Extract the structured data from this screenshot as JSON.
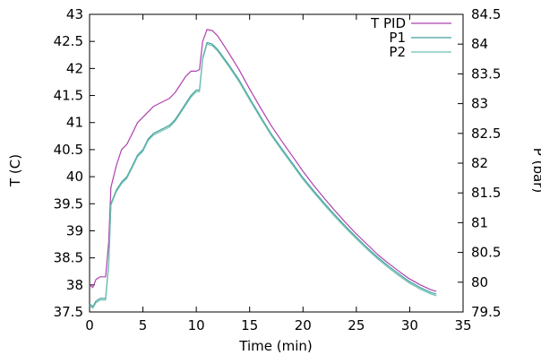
{
  "chart_data": {
    "type": "line",
    "xlabel": "Time (min)",
    "ylabel_left": "T (C)",
    "ylabel_right": "P (bar)",
    "xlim": [
      0,
      35
    ],
    "ylim_left": [
      37.5,
      43
    ],
    "ylim_right": [
      79.5,
      84.5
    ],
    "xticks": [
      0,
      5,
      10,
      15,
      20,
      25,
      30,
      35
    ],
    "yticks_left": [
      37.5,
      38,
      38.5,
      39,
      39.5,
      40,
      40.5,
      41,
      41.5,
      42,
      42.5,
      43
    ],
    "yticks_right": [
      79.5,
      80,
      80.5,
      81,
      81.5,
      82,
      82.5,
      83,
      83.5,
      84,
      84.5
    ],
    "legend_placement": "top-right",
    "grid": false,
    "series": [
      {
        "name": "T PID",
        "axis": "left",
        "color": "#b040b0",
        "x": [
          0,
          0.3,
          0.6,
          1.0,
          1.5,
          1.8,
          2.0,
          2.5,
          3.0,
          3.5,
          4.0,
          4.5,
          5.0,
          5.5,
          6.0,
          6.5,
          7.0,
          7.5,
          8.0,
          8.5,
          9.0,
          9.5,
          10.0,
          10.3,
          10.6,
          11.0,
          11.5,
          12.0,
          13.0,
          14.0,
          15.0,
          16.0,
          17.0,
          18.0,
          19.0,
          20.0,
          21.0,
          22.0,
          23.0,
          24.0,
          25.0,
          26.0,
          27.0,
          28.0,
          29.0,
          30.0,
          31.0,
          32.0,
          32.5
        ],
        "values": [
          38.0,
          37.95,
          38.1,
          38.15,
          38.15,
          38.8,
          39.8,
          40.2,
          40.5,
          40.6,
          40.8,
          41.0,
          41.1,
          41.2,
          41.3,
          41.35,
          41.4,
          41.45,
          41.55,
          41.7,
          41.85,
          41.95,
          41.95,
          41.98,
          42.5,
          42.72,
          42.7,
          42.6,
          42.3,
          41.98,
          41.62,
          41.28,
          40.95,
          40.66,
          40.38,
          40.1,
          39.84,
          39.6,
          39.37,
          39.15,
          38.94,
          38.75,
          38.56,
          38.4,
          38.25,
          38.11,
          38.0,
          37.91,
          37.88
        ]
      },
      {
        "name": "P1",
        "axis": "left",
        "color": "#40a0a0",
        "x": [
          0,
          0.3,
          0.6,
          1.0,
          1.5,
          1.8,
          2.0,
          2.5,
          3.0,
          3.5,
          4.0,
          4.5,
          5.0,
          5.5,
          6.0,
          6.5,
          7.0,
          7.5,
          8.0,
          8.5,
          9.0,
          9.5,
          10.0,
          10.3,
          10.6,
          11.0,
          11.5,
          12.0,
          13.0,
          14.0,
          15.0,
          16.0,
          17.0,
          18.0,
          19.0,
          20.0,
          21.0,
          22.0,
          23.0,
          24.0,
          25.0,
          26.0,
          27.0,
          28.0,
          29.0,
          30.0,
          31.0,
          32.0,
          32.5
        ],
        "values": [
          37.65,
          37.6,
          37.7,
          37.75,
          37.75,
          38.4,
          39.5,
          39.75,
          39.9,
          40.0,
          40.2,
          40.4,
          40.5,
          40.7,
          40.8,
          40.85,
          40.9,
          40.95,
          41.05,
          41.2,
          41.35,
          41.5,
          41.6,
          41.6,
          42.2,
          42.48,
          42.45,
          42.35,
          42.08,
          41.79,
          41.45,
          41.12,
          40.8,
          40.52,
          40.25,
          39.98,
          39.74,
          39.51,
          39.29,
          39.08,
          38.88,
          38.69,
          38.51,
          38.35,
          38.2,
          38.06,
          37.95,
          37.86,
          37.83
        ]
      },
      {
        "name": "P2",
        "axis": "left",
        "color": "#70c0b0",
        "x": [
          0,
          0.3,
          0.6,
          1.0,
          1.5,
          1.8,
          2.0,
          2.5,
          3.0,
          3.5,
          4.0,
          4.5,
          5.0,
          5.5,
          6.0,
          6.5,
          7.0,
          7.5,
          8.0,
          8.5,
          9.0,
          9.5,
          10.0,
          10.3,
          10.6,
          11.0,
          11.5,
          12.0,
          13.0,
          14.0,
          15.0,
          16.0,
          17.0,
          18.0,
          19.0,
          20.0,
          21.0,
          22.0,
          23.0,
          24.0,
          25.0,
          26.0,
          27.0,
          28.0,
          29.0,
          30.0,
          31.0,
          32.0,
          32.5
        ],
        "values": [
          37.62,
          37.57,
          37.67,
          37.72,
          37.72,
          38.37,
          39.47,
          39.72,
          39.87,
          39.97,
          40.17,
          40.37,
          40.47,
          40.67,
          40.77,
          40.82,
          40.87,
          40.92,
          41.02,
          41.17,
          41.32,
          41.47,
          41.57,
          41.57,
          42.17,
          42.45,
          42.42,
          42.32,
          42.05,
          41.76,
          41.42,
          41.09,
          40.77,
          40.49,
          40.22,
          39.95,
          39.71,
          39.48,
          39.26,
          39.05,
          38.85,
          38.66,
          38.48,
          38.32,
          38.17,
          38.03,
          37.92,
          37.83,
          37.8
        ]
      }
    ]
  }
}
